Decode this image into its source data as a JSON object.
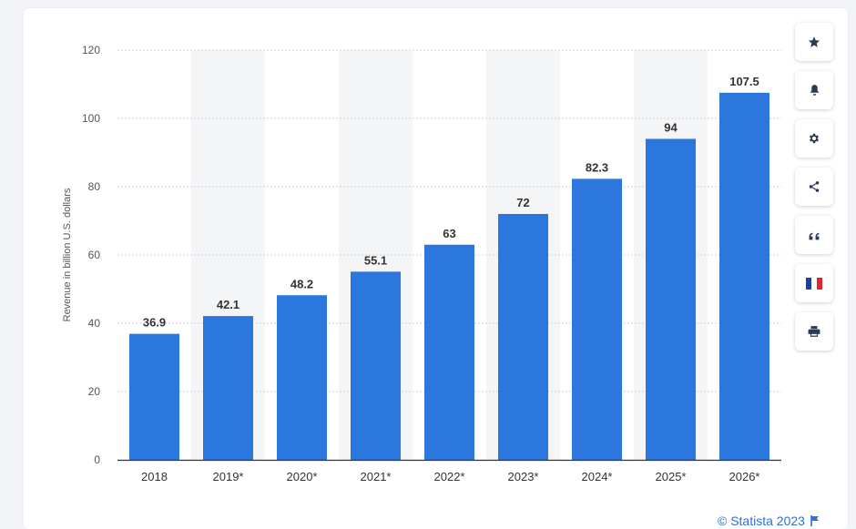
{
  "chart_data": {
    "type": "bar",
    "categories": [
      "2018",
      "2019*",
      "2020*",
      "2021*",
      "2022*",
      "2023*",
      "2024*",
      "2025*",
      "2026*"
    ],
    "values": [
      36.9,
      42.1,
      48.2,
      55.1,
      63,
      72,
      82.3,
      94,
      107.5
    ],
    "value_labels": [
      "36.9",
      "42.1",
      "48.2",
      "55.1",
      "63",
      "72",
      "82.3",
      "94",
      "107.5"
    ],
    "title": "",
    "xlabel": "",
    "ylabel": "Revenue in billion U.S. dollars",
    "ylim": [
      0,
      120
    ],
    "yticks": [
      "0",
      "20",
      "40",
      "60",
      "80",
      "100",
      "120"
    ],
    "grid": true,
    "legend": "none",
    "bar_color": "#2b77de"
  },
  "toolbar": {
    "buttons": [
      "star-icon",
      "bell-icon",
      "gear-icon",
      "share-icon",
      "quote-icon",
      "french-flag-icon",
      "print-icon"
    ]
  },
  "credit": {
    "text": "© Statista 2023",
    "color": "#2f6fd6",
    "flag_icon": "flag-icon"
  },
  "colors": {
    "band": "#f4f5f7",
    "grid": "#cfd3d8",
    "axis": "#333333",
    "label": "#333333",
    "tick": "#555555"
  }
}
